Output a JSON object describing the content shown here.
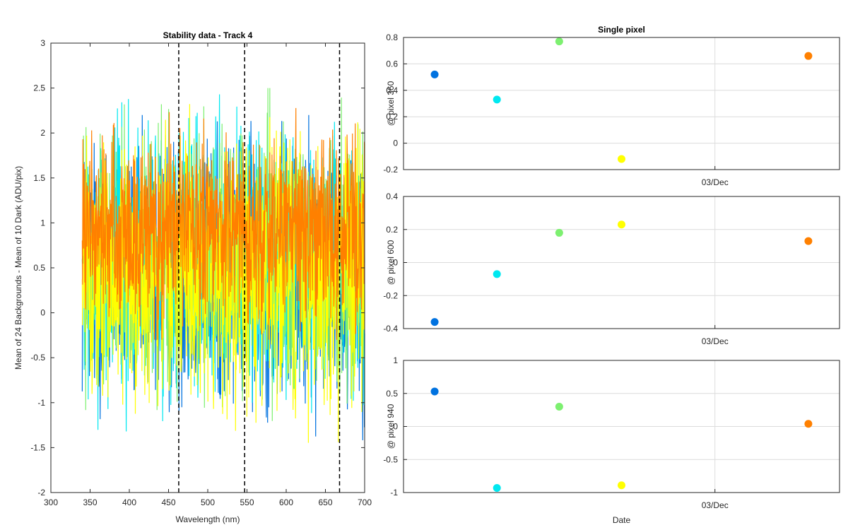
{
  "chart_data": [
    {
      "type": "line",
      "title": "Stability data - Track 4",
      "xlabel": "Wavelength (nm)",
      "ylabel": "Mean of 24 Backgrounds - Mean of 10 Dark (ADU/pix)",
      "xlim": [
        300,
        700
      ],
      "ylim": [
        -2,
        3
      ],
      "xticks": [
        300,
        350,
        400,
        450,
        500,
        550,
        600,
        650,
        700
      ],
      "yticks": [
        -2,
        -1.5,
        -1,
        -0.5,
        0,
        0.5,
        1,
        1.5,
        2,
        2.5,
        3
      ],
      "x_range_data": [
        340,
        700
      ],
      "grid": false,
      "vertical_dashed_lines_x": [
        463,
        547,
        668
      ],
      "series": [
        {
          "color": "#0072e0",
          "mean": 0.45,
          "noise_amplitude": 1.35,
          "approx_min": -1.9,
          "approx_max": 2.2
        },
        {
          "color": "#00e8f0",
          "mean": 0.55,
          "noise_amplitude": 1.3,
          "approx_min": -1.6,
          "approx_max": 2.9
        },
        {
          "color": "#7df070",
          "mean": 0.6,
          "noise_amplitude": 1.25,
          "approx_min": -1.4,
          "approx_max": 2.5
        },
        {
          "color": "#ffff00",
          "mean": 0.45,
          "noise_amplitude": 1.4,
          "approx_min": -1.9,
          "approx_max": 2.6
        },
        {
          "color": "#ff8000",
          "mean": 0.9,
          "noise_amplitude": 0.95,
          "approx_min": -0.3,
          "approx_max": 2.7
        }
      ]
    },
    {
      "type": "scatter",
      "title": "Single pixel",
      "xlabel": "",
      "ylabel": "@ pixel 360",
      "ylim": [
        -0.2,
        0.8
      ],
      "yticks": [
        -0.2,
        0,
        0.2,
        0.4,
        0.6,
        0.8
      ],
      "xtick_labels": [
        "03/Dec"
      ],
      "grid": true,
      "points": [
        {
          "x": 1,
          "y": 0.52,
          "color": "#0072e0"
        },
        {
          "x": 2,
          "y": 0.33,
          "color": "#00e8f0"
        },
        {
          "x": 3,
          "y": 0.77,
          "color": "#7df070"
        },
        {
          "x": 4,
          "y": -0.12,
          "color": "#ffff00"
        },
        {
          "x": 7,
          "y": 0.66,
          "color": "#ff8000"
        }
      ]
    },
    {
      "type": "scatter",
      "title": "",
      "xlabel": "",
      "ylabel": "@ pixel 600",
      "ylim": [
        -0.4,
        0.4
      ],
      "yticks": [
        -0.4,
        -0.2,
        0,
        0.2,
        0.4
      ],
      "xtick_labels": [
        "03/Dec"
      ],
      "grid": true,
      "points": [
        {
          "x": 1,
          "y": -0.36,
          "color": "#0072e0"
        },
        {
          "x": 2,
          "y": -0.07,
          "color": "#00e8f0"
        },
        {
          "x": 3,
          "y": 0.18,
          "color": "#7df070"
        },
        {
          "x": 4,
          "y": 0.23,
          "color": "#ffff00"
        },
        {
          "x": 7,
          "y": 0.13,
          "color": "#ff8000"
        }
      ]
    },
    {
      "type": "scatter",
      "title": "",
      "xlabel": "Date",
      "ylabel": "@ pixel 940",
      "ylim": [
        -1,
        1
      ],
      "yticks": [
        -1,
        -0.5,
        0,
        0.5,
        1
      ],
      "xtick_labels": [
        "03/Dec"
      ],
      "grid": true,
      "points": [
        {
          "x": 1,
          "y": 0.53,
          "color": "#0072e0"
        },
        {
          "x": 2,
          "y": -0.93,
          "color": "#00e8f0"
        },
        {
          "x": 3,
          "y": 0.3,
          "color": "#7df070"
        },
        {
          "x": 4,
          "y": -0.89,
          "color": "#ffff00"
        },
        {
          "x": 7,
          "y": 0.04,
          "color": "#ff8000"
        }
      ]
    }
  ]
}
